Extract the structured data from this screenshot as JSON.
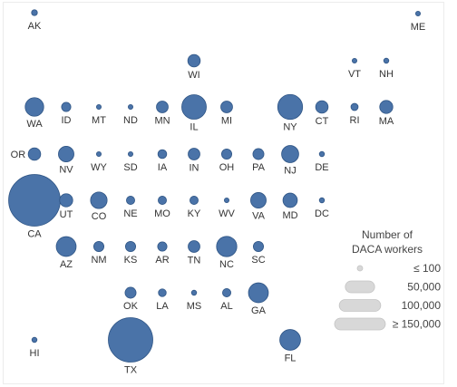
{
  "chart_data": {
    "type": "bubble-tile-map",
    "measure_unit": "DACA workers",
    "size_max": 150000,
    "states": [
      {
        "code": "AK",
        "value": 2000
      },
      {
        "code": "ME",
        "value": 500
      },
      {
        "code": "WI",
        "value": 9000
      },
      {
        "code": "VT",
        "value": 500
      },
      {
        "code": "NH",
        "value": 1500
      },
      {
        "code": "WA",
        "value": 20000
      },
      {
        "code": "ID",
        "value": 5000
      },
      {
        "code": "MT",
        "value": 500
      },
      {
        "code": "ND",
        "value": 500
      },
      {
        "code": "MN",
        "value": 8000
      },
      {
        "code": "IL",
        "value": 35000
      },
      {
        "code": "MI",
        "value": 8000
      },
      {
        "code": "NY",
        "value": 36000
      },
      {
        "code": "CT",
        "value": 9000
      },
      {
        "code": "RI",
        "value": 3000
      },
      {
        "code": "MA",
        "value": 10000
      },
      {
        "code": "OR",
        "value": 9000
      },
      {
        "code": "NV",
        "value": 14000
      },
      {
        "code": "WY",
        "value": 1000
      },
      {
        "code": "SD",
        "value": 800
      },
      {
        "code": "IA",
        "value": 4500
      },
      {
        "code": "IN",
        "value": 8000
      },
      {
        "code": "OH",
        "value": 6000
      },
      {
        "code": "PA",
        "value": 7000
      },
      {
        "code": "NJ",
        "value": 17000
      },
      {
        "code": "DE",
        "value": 1500
      },
      {
        "code": "CA",
        "value": 155000
      },
      {
        "code": "UT",
        "value": 10000
      },
      {
        "code": "CO",
        "value": 16000
      },
      {
        "code": "NE",
        "value": 4000
      },
      {
        "code": "MO",
        "value": 4000
      },
      {
        "code": "KY",
        "value": 4000
      },
      {
        "code": "WV",
        "value": 400
      },
      {
        "code": "VA",
        "value": 14000
      },
      {
        "code": "MD",
        "value": 12000
      },
      {
        "code": "DC",
        "value": 1500
      },
      {
        "code": "AZ",
        "value": 23000
      },
      {
        "code": "NM",
        "value": 6000
      },
      {
        "code": "KS",
        "value": 6000
      },
      {
        "code": "AR",
        "value": 5000
      },
      {
        "code": "TN",
        "value": 8000
      },
      {
        "code": "NC",
        "value": 24000
      },
      {
        "code": "SC",
        "value": 6000
      },
      {
        "code": "OK",
        "value": 7000
      },
      {
        "code": "LA",
        "value": 3500
      },
      {
        "code": "MS",
        "value": 1500
      },
      {
        "code": "AL",
        "value": 4000
      },
      {
        "code": "GA",
        "value": 23000
      },
      {
        "code": "HI",
        "value": 1500
      },
      {
        "code": "TX",
        "value": 115000
      },
      {
        "code": "FL",
        "value": 25000
      }
    ],
    "legend": {
      "title_lines": [
        "Number of",
        "DACA workers"
      ],
      "items": [
        {
          "label": "≤ 100",
          "value": 100
        },
        {
          "label": "50,000",
          "value": 50000
        },
        {
          "label": "100,000",
          "value": 100000
        },
        {
          "label": "≥ 150,000",
          "value": 150000
        }
      ]
    },
    "colors": {
      "bubble": "#4a73a8",
      "legend": "#d8d8d8"
    }
  }
}
